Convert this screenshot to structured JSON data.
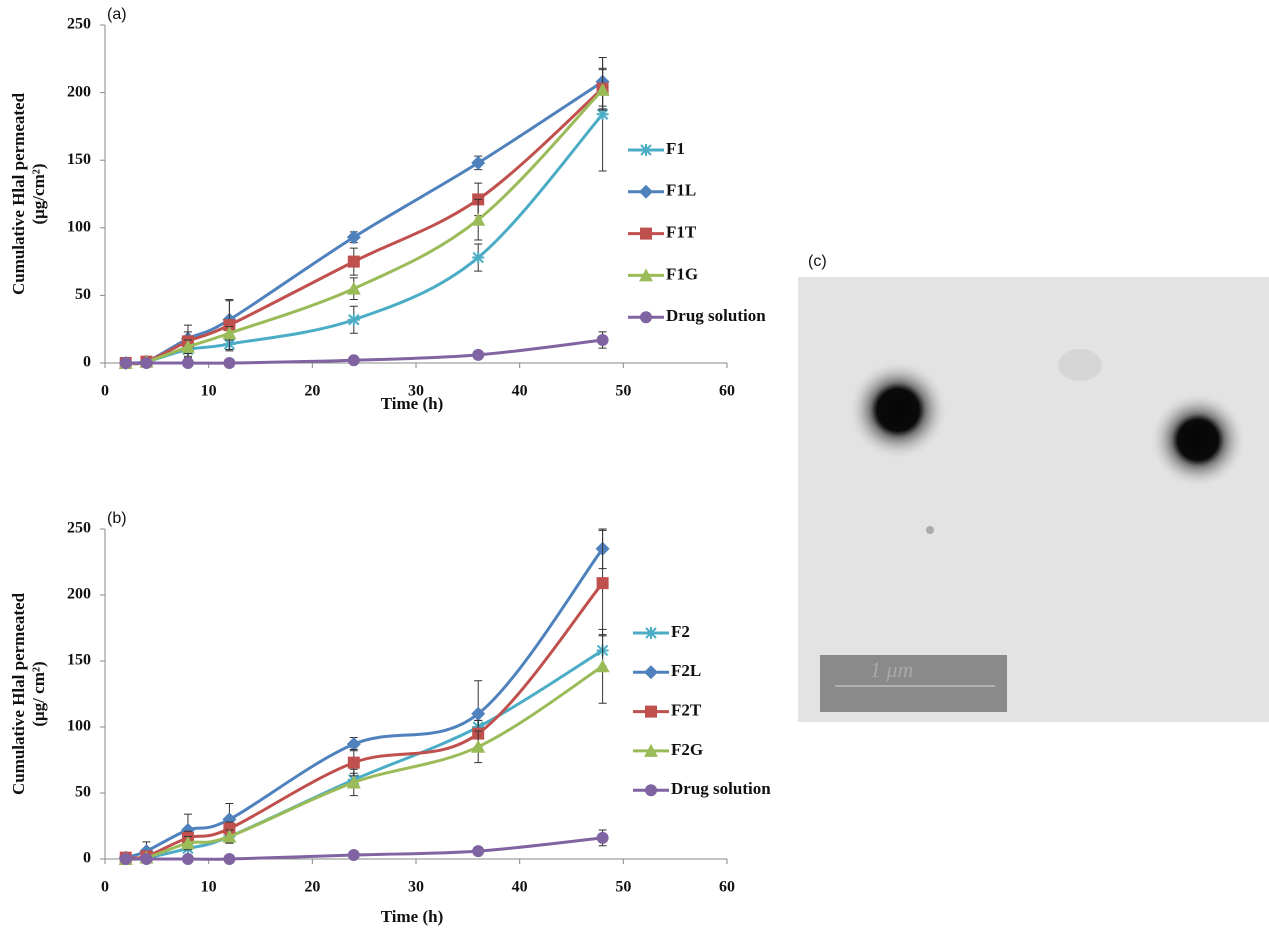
{
  "chart_data": [
    {
      "type": "line",
      "panel_label": "(a)",
      "xlabel": "Time (h)",
      "ylabel": [
        "Cumulative  Hlal permeated",
        "(μg/cm²)"
      ],
      "x": [
        2,
        4,
        8,
        12,
        24,
        36,
        48
      ],
      "xlim": [
        0,
        60
      ],
      "xticks": [
        0,
        10,
        20,
        30,
        40,
        50,
        60
      ],
      "ylim": [
        0,
        250
      ],
      "yticks": [
        0,
        50,
        100,
        150,
        200,
        250
      ],
      "smooth": true,
      "series": [
        {
          "name": "F1",
          "color": "#4bacc6",
          "marker": "star",
          "values": [
            0,
            1,
            10,
            14,
            32,
            78,
            184
          ],
          "errors": [
            1,
            1,
            5,
            5,
            10,
            10,
            42
          ]
        },
        {
          "name": "F1L",
          "color": "#4f81bd",
          "marker": "diamond",
          "values": [
            0,
            1,
            18,
            32,
            93,
            148,
            208
          ],
          "errors": [
            1,
            1,
            5,
            15,
            4,
            5,
            18
          ]
        },
        {
          "name": "F1T",
          "color": "#c0504d",
          "marker": "square",
          "values": [
            0,
            1,
            16,
            28,
            75,
            121,
            203
          ],
          "errors": [
            1,
            1,
            12,
            18,
            10,
            12,
            15
          ]
        },
        {
          "name": "F1G",
          "color": "#9bbb59",
          "marker": "triangle",
          "values": [
            0,
            1,
            12,
            22,
            55,
            106,
            202
          ],
          "errors": [
            1,
            1,
            5,
            5,
            8,
            15,
            15
          ]
        },
        {
          "name": "Drug solution",
          "color": "#8064a2",
          "marker": "circle",
          "values": [
            0,
            0,
            0,
            0,
            2,
            6,
            17
          ],
          "errors": [
            1,
            1,
            1,
            1,
            1,
            2,
            6
          ]
        }
      ]
    },
    {
      "type": "line",
      "panel_label": "(b)",
      "xlabel": "Time (h)",
      "ylabel": [
        "Cumulative  Hlal permeated",
        "(μg/ cm²)"
      ],
      "x": [
        2,
        4,
        8,
        12,
        24,
        36,
        48
      ],
      "xlim": [
        0,
        60
      ],
      "xticks": [
        0,
        10,
        20,
        30,
        40,
        50,
        60
      ],
      "ylim": [
        0,
        250
      ],
      "yticks": [
        0,
        50,
        100,
        150,
        200,
        250
      ],
      "smooth": true,
      "series": [
        {
          "name": "F2",
          "color": "#4bacc6",
          "marker": "star",
          "values": [
            0,
            1,
            8,
            17,
            60,
            100,
            158
          ],
          "errors": [
            1,
            1,
            5,
            5,
            5,
            5,
            12
          ]
        },
        {
          "name": "F2L",
          "color": "#4f81bd",
          "marker": "diamond",
          "values": [
            1,
            6,
            22,
            30,
            87,
            110,
            235
          ],
          "errors": [
            1,
            7,
            12,
            12,
            5,
            25,
            15
          ]
        },
        {
          "name": "F2T",
          "color": "#c0504d",
          "marker": "square",
          "values": [
            1,
            2,
            16,
            23,
            73,
            95,
            209
          ],
          "errors": [
            1,
            1,
            5,
            5,
            10,
            10,
            40
          ]
        },
        {
          "name": "F2G",
          "color": "#9bbb59",
          "marker": "triangle",
          "values": [
            0,
            1,
            12,
            17,
            58,
            85,
            146
          ],
          "errors": [
            1,
            1,
            5,
            5,
            10,
            12,
            28
          ]
        },
        {
          "name": "Drug solution",
          "color": "#8064a2",
          "marker": "circle",
          "values": [
            0,
            0,
            0,
            0,
            3,
            6,
            16
          ],
          "errors": [
            1,
            1,
            1,
            1,
            2,
            2,
            6
          ]
        }
      ]
    }
  ],
  "panel_c": {
    "label": "(c)",
    "scale_bar": "1 μm"
  }
}
